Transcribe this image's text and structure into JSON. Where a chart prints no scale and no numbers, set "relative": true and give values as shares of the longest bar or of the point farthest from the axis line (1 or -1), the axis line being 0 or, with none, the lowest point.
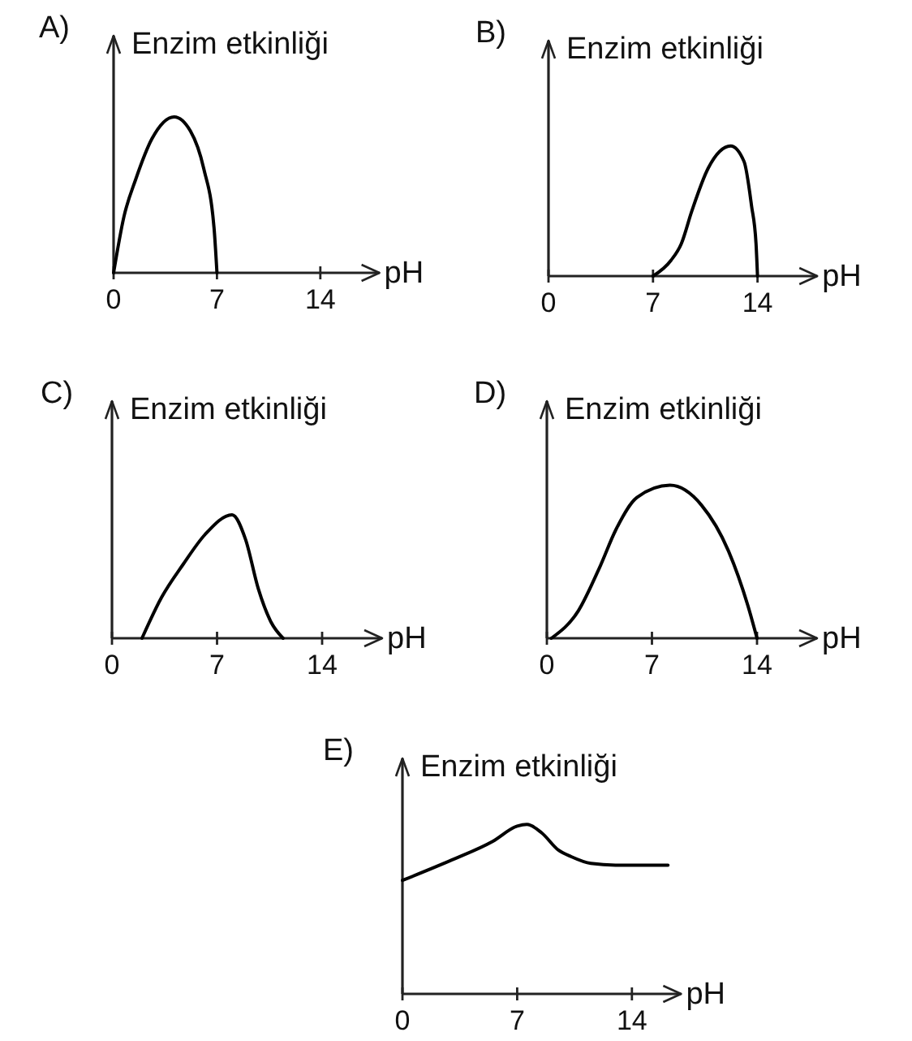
{
  "chart_data": [
    {
      "type": "line",
      "title": "A)",
      "ylabel": "Enzim etkinliği",
      "xlabel": "pH",
      "relative": true,
      "xlim": [
        0,
        18
      ],
      "xticks": [
        0,
        7,
        14
      ],
      "color": "#000000",
      "x": [
        0,
        0.7,
        1.5,
        2.6,
        4.1,
        5.2,
        6.1,
        6.8,
        7
      ],
      "values": [
        0,
        0.36,
        0.6,
        0.86,
        1,
        0.91,
        0.67,
        0.29,
        0
      ]
    },
    {
      "type": "line",
      "title": "B)",
      "ylabel": "Enzim etkinliği",
      "xlabel": "pH",
      "relative": true,
      "xlim": [
        0,
        18
      ],
      "xticks": [
        0,
        7,
        14
      ],
      "color": "#000000",
      "x": [
        7,
        8.2,
        8.9,
        9.6,
        10.7,
        12.2,
        13.1,
        13.6,
        13.9,
        14
      ],
      "values": [
        0,
        0.12,
        0.25,
        0.5,
        0.83,
        1,
        0.88,
        0.54,
        0.25,
        0
      ]
    },
    {
      "type": "line",
      "title": "C)",
      "ylabel": "Enzim etkinliği",
      "xlabel": "pH",
      "relative": true,
      "xlim": [
        0,
        18
      ],
      "xticks": [
        0,
        7,
        14
      ],
      "color": "#000000",
      "x": [
        2,
        3.3,
        4.75,
        6.2,
        8,
        8.9,
        9.75,
        10.6,
        11.4
      ],
      "values": [
        0,
        0.33,
        0.6,
        0.84,
        1,
        0.8,
        0.4,
        0.13,
        0
      ]
    },
    {
      "type": "line",
      "title": "D)",
      "ylabel": "Enzim etkinliği",
      "xlabel": "pH",
      "relative": true,
      "xlim": [
        0,
        18
      ],
      "xticks": [
        0,
        7,
        14
      ],
      "color": "#000000",
      "x": [
        0.3,
        2.1,
        3.5,
        4.6,
        6,
        8.2,
        10.3,
        12.1,
        13.4,
        14
      ],
      "values": [
        0,
        0.18,
        0.46,
        0.71,
        0.92,
        1,
        0.87,
        0.57,
        0.21,
        0
      ]
    },
    {
      "type": "line",
      "title": "E)",
      "ylabel": "Enzim etkinliği",
      "xlabel": "pH",
      "relative": true,
      "xlim": [
        0,
        17
      ],
      "xticks": [
        0,
        7,
        14
      ],
      "color": "#000000",
      "x": [
        0,
        3,
        5.5,
        7,
        7.6,
        8.5,
        9.5,
        10.3,
        11.5,
        13,
        16.2
      ],
      "values": [
        0.67,
        0.79,
        0.9,
        0.99,
        1,
        0.95,
        0.85,
        0.81,
        0.77,
        0.76,
        0.76
      ]
    }
  ]
}
